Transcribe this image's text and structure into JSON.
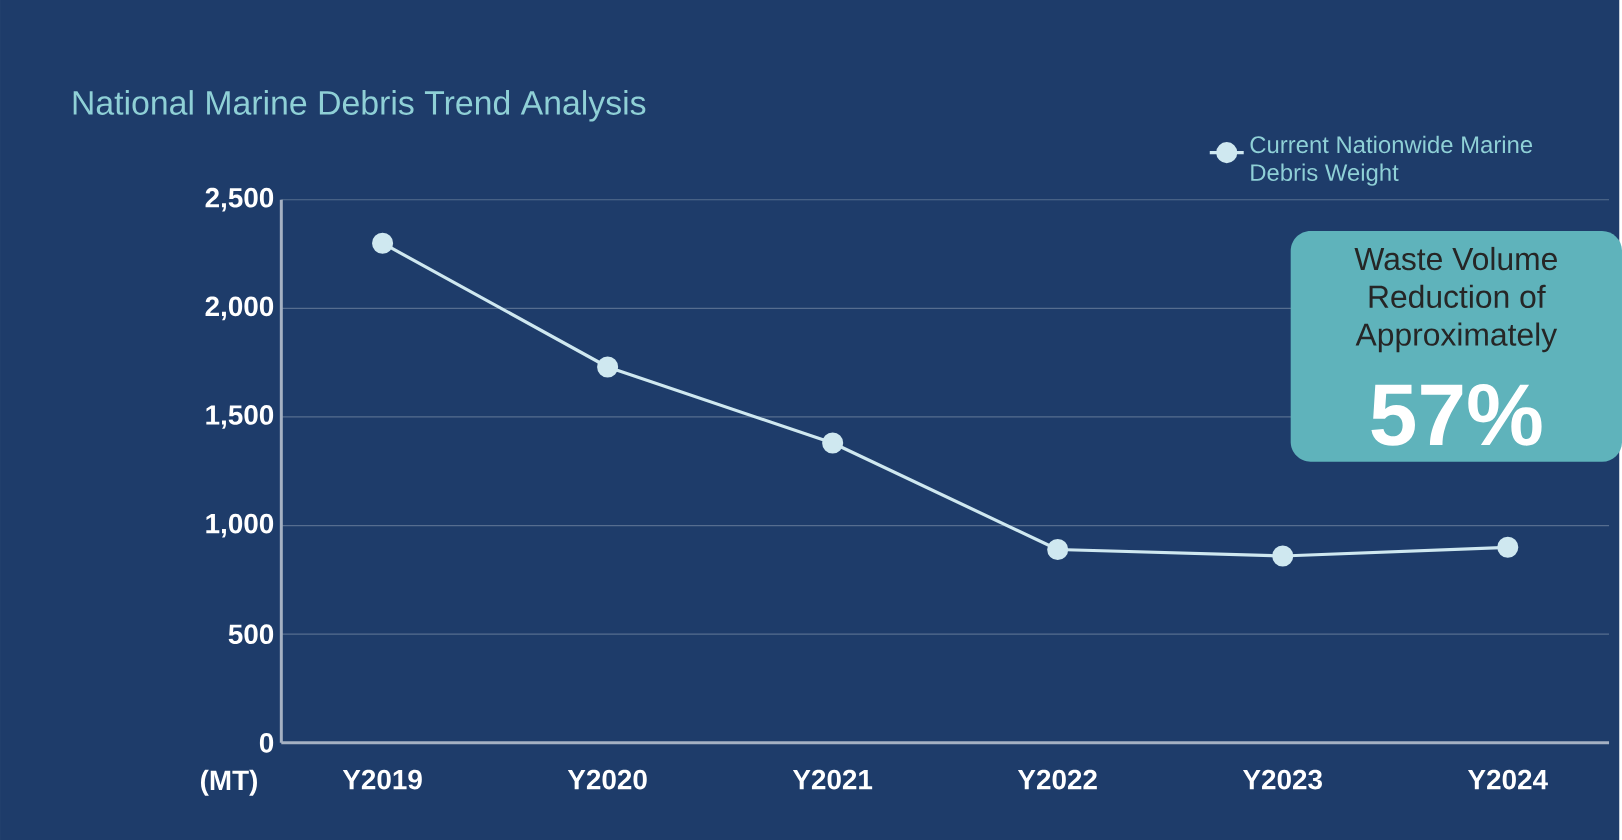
{
  "chart_data": {
    "type": "line",
    "title": "National Marine Debris Trend Analysis",
    "ylabel": "(MT)",
    "categories": [
      "Y2019",
      "Y2020",
      "Y2021",
      "Y2022",
      "Y2023",
      "Y2024"
    ],
    "series": [
      {
        "name": "Current Nationwide Marine Debris Weight",
        "color": "#cfe8f0",
        "values": [
          2300,
          1730,
          1380,
          890,
          860,
          900
        ]
      }
    ],
    "ylim": [
      0,
      2500
    ],
    "yticks": [
      0,
      500,
      {
        "value": 1000,
        "label": "1,000"
      },
      {
        "value": 1500,
        "label": "1,500"
      },
      {
        "value": 2000,
        "label": "2,000"
      },
      {
        "value": 2500,
        "label": "2,500"
      }
    ],
    "grid": "y",
    "legend": "top right",
    "marker": "circle",
    "line_style": "solid",
    "annotations": [
      "Waste Volume Reduction of Approximately",
      "57%"
    ]
  }
}
